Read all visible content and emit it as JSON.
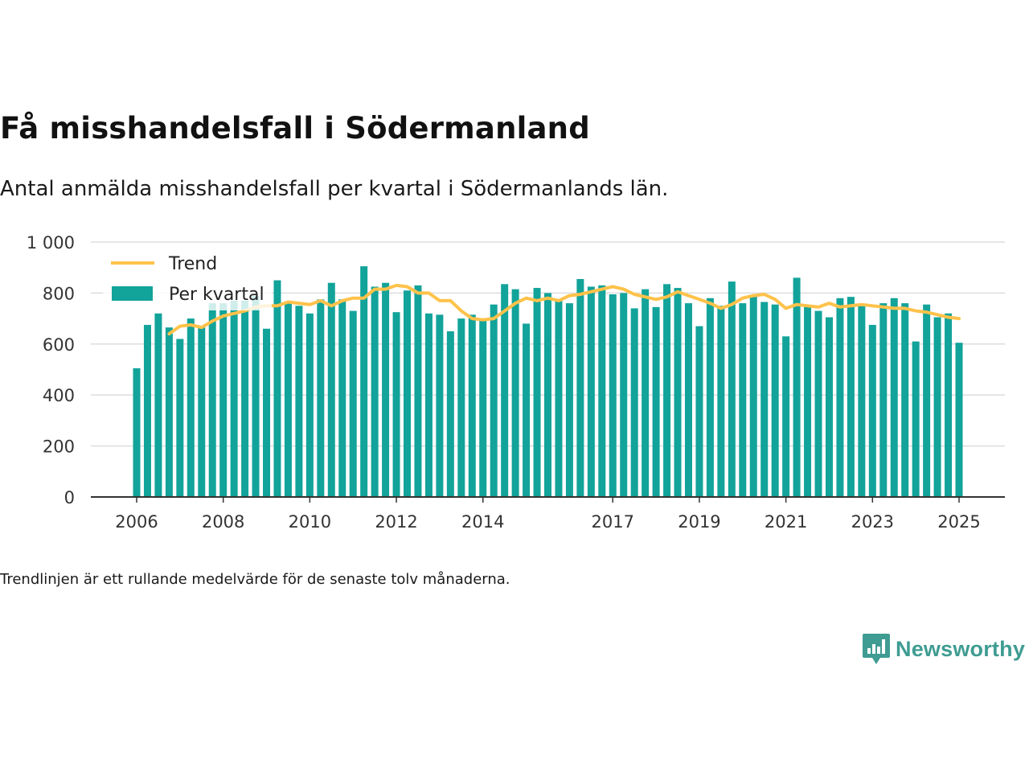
{
  "header": {
    "title": "Få misshandelsfall i Södermanland",
    "subtitle": "Antal anmälda misshandelsfall per kvartal i Södermanlands län."
  },
  "footer": {
    "note": "Trendlinjen är ett rullande medelvärde för de senaste tolv månaderna.",
    "brand": "Newsworthy"
  },
  "colors": {
    "bar": "#12a39a",
    "trend": "#ffc24a",
    "grid": "#dddddd",
    "axis": "#333333",
    "brand": "#3f9c92"
  },
  "icons": {
    "brand_logo": "newsworthy-logo-icon"
  },
  "chart_data": {
    "type": "bar",
    "title": "Få misshandelsfall i Södermanland",
    "subtitle": "Antal anmälda misshandelsfall per kvartal i Södermanlands län.",
    "xlabel": "",
    "ylabel": "",
    "ylim": [
      0,
      1000
    ],
    "yticks": [
      0,
      200,
      400,
      600,
      800,
      1000
    ],
    "ytick_labels": [
      "0",
      "200",
      "400",
      "600",
      "800",
      "1 000"
    ],
    "xlim": [
      2006.0,
      2025.65
    ],
    "xtick_labels": [
      "2006",
      "2008",
      "2010",
      "2012",
      "2014",
      "2017",
      "2019",
      "2021",
      "2023",
      "2025"
    ],
    "xtick_positions": [
      2006.0,
      2008.0,
      2010.0,
      2012.0,
      2014.0,
      2017.0,
      2019.0,
      2021.0,
      2023.0,
      2025.0
    ],
    "grid": true,
    "legend": {
      "position": "top-left",
      "items": [
        {
          "label": "Trend",
          "kind": "line"
        },
        {
          "label": "Per kvartal",
          "kind": "bar"
        }
      ]
    },
    "series": [
      {
        "name": "Per kvartal",
        "kind": "bar",
        "x": [
          2006.0,
          2006.25,
          2006.5,
          2006.75,
          2007.0,
          2007.25,
          2007.5,
          2007.75,
          2008.0,
          2008.25,
          2008.5,
          2008.75,
          2009.0,
          2009.25,
          2009.5,
          2009.75,
          2010.0,
          2010.25,
          2010.5,
          2010.75,
          2011.0,
          2011.25,
          2011.5,
          2011.75,
          2012.0,
          2012.25,
          2012.5,
          2012.75,
          2013.0,
          2013.25,
          2013.5,
          2013.75,
          2014.0,
          2014.25,
          2014.5,
          2014.75,
          2015.0,
          2015.25,
          2015.5,
          2015.75,
          2016.0,
          2016.25,
          2016.5,
          2016.75,
          2017.0,
          2017.25,
          2017.5,
          2017.75,
          2018.0,
          2018.25,
          2018.5,
          2018.75,
          2019.0,
          2019.25,
          2019.5,
          2019.75,
          2020.0,
          2020.25,
          2020.5,
          2020.75,
          2021.0,
          2021.25,
          2021.5,
          2021.75,
          2022.0,
          2022.25,
          2022.5,
          2022.75,
          2023.0,
          2023.25,
          2023.5,
          2023.75,
          2024.0,
          2024.25,
          2024.5,
          2024.75,
          2025.0
        ],
        "values": [
          505,
          675,
          720,
          665,
          620,
          700,
          665,
          760,
          760,
          770,
          770,
          790,
          660,
          850,
          765,
          750,
          720,
          775,
          840,
          775,
          730,
          905,
          825,
          840,
          725,
          810,
          830,
          720,
          715,
          650,
          700,
          715,
          700,
          755,
          835,
          815,
          680,
          820,
          800,
          775,
          760,
          855,
          825,
          830,
          795,
          800,
          740,
          815,
          745,
          835,
          820,
          760,
          670,
          780,
          750,
          845,
          760,
          790,
          765,
          755,
          630,
          860,
          745,
          730,
          705,
          780,
          785,
          750,
          675,
          760,
          780,
          760,
          610,
          755,
          705,
          720,
          605
        ]
      },
      {
        "name": "Trend",
        "kind": "line",
        "x": [
          2006.75,
          2007.0,
          2007.25,
          2007.5,
          2007.75,
          2008.0,
          2008.25,
          2008.5,
          2008.75,
          2009.0,
          2009.25,
          2009.5,
          2009.75,
          2010.0,
          2010.25,
          2010.5,
          2010.75,
          2011.0,
          2011.25,
          2011.5,
          2011.75,
          2012.0,
          2012.25,
          2012.5,
          2012.75,
          2013.0,
          2013.25,
          2013.5,
          2013.75,
          2014.0,
          2014.25,
          2014.5,
          2014.75,
          2015.0,
          2015.25,
          2015.5,
          2015.75,
          2016.0,
          2016.25,
          2016.5,
          2016.75,
          2017.0,
          2017.25,
          2017.5,
          2017.75,
          2018.0,
          2018.25,
          2018.5,
          2018.75,
          2019.0,
          2019.25,
          2019.5,
          2019.75,
          2020.0,
          2020.25,
          2020.5,
          2020.75,
          2021.0,
          2021.25,
          2021.5,
          2021.75,
          2022.0,
          2022.25,
          2022.5,
          2022.75,
          2023.0,
          2023.25,
          2023.5,
          2023.75,
          2024.0,
          2024.25,
          2024.5,
          2024.75,
          2025.0
        ],
        "values": [
          640,
          670,
          675,
          665,
          690,
          710,
          720,
          730,
          745,
          750,
          750,
          765,
          760,
          755,
          770,
          750,
          770,
          780,
          780,
          815,
          815,
          830,
          825,
          800,
          800,
          770,
          770,
          730,
          700,
          695,
          700,
          730,
          760,
          780,
          770,
          780,
          770,
          790,
          795,
          805,
          815,
          825,
          815,
          795,
          785,
          775,
          785,
          805,
          790,
          775,
          760,
          740,
          755,
          780,
          790,
          795,
          775,
          740,
          755,
          750,
          745,
          760,
          745,
          750,
          755,
          750,
          745,
          740,
          740,
          730,
          725,
          715,
          705,
          700
        ]
      }
    ]
  }
}
